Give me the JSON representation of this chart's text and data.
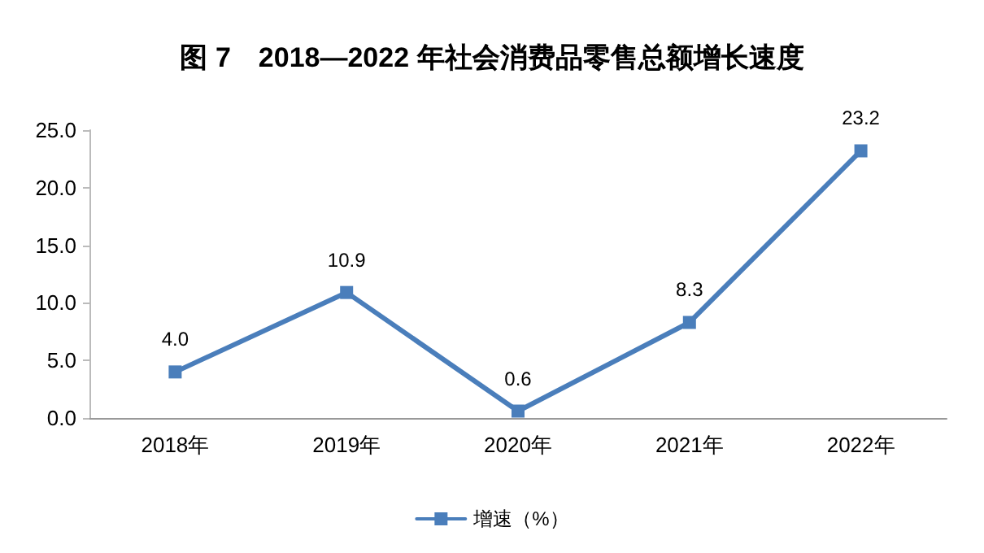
{
  "chart_data": {
    "type": "line",
    "title": "图 7　2018—2022 年社会消费品零售总额增长速度",
    "categories": [
      "2018年",
      "2019年",
      "2020年",
      "2021年",
      "2022年"
    ],
    "series": [
      {
        "name": "增速（%）",
        "color": "#4a7ebb",
        "values": [
          4.0,
          10.9,
          0.6,
          8.3,
          23.2
        ],
        "value_labels": [
          "4.0",
          "10.9",
          "0.6",
          "8.3",
          "23.2"
        ]
      }
    ],
    "ylim": [
      0,
      25
    ],
    "yticks": [
      {
        "value": 0,
        "label": "0.0"
      },
      {
        "value": 5,
        "label": "5.0"
      },
      {
        "value": 10,
        "label": "10.0"
      },
      {
        "value": 15,
        "label": "15.0"
      },
      {
        "value": 20,
        "label": "20.0"
      },
      {
        "value": 25,
        "label": "25.0"
      }
    ],
    "grid": false,
    "legend": "bottom",
    "marker": "square",
    "line_style": "solid"
  }
}
